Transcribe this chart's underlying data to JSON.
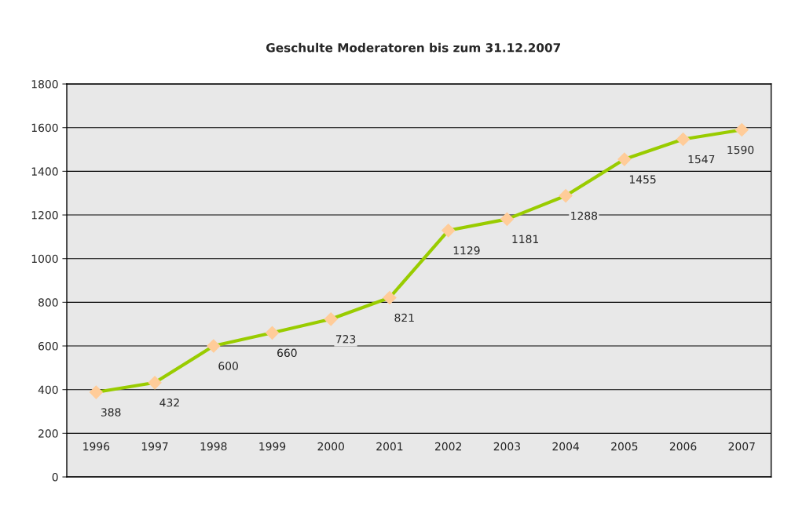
{
  "chart_data": {
    "type": "line",
    "title": "Geschulte Moderatoren bis zum 31.12.2007",
    "categories": [
      "1996",
      "1997",
      "1998",
      "1999",
      "2000",
      "2001",
      "2002",
      "2003",
      "2004",
      "2005",
      "2006",
      "2007"
    ],
    "series": [
      {
        "color": "#99cc00",
        "values": [
          388,
          432,
          600,
          660,
          723,
          821,
          1129,
          1181,
          1288,
          1455,
          1547,
          1590
        ]
      }
    ],
    "marker": "diamond",
    "data_labels": true,
    "ylim": [
      0,
      1800
    ],
    "yticks": [
      0,
      200,
      400,
      600,
      800,
      1000,
      1200,
      1400,
      1600,
      1800
    ],
    "grid": "y"
  }
}
